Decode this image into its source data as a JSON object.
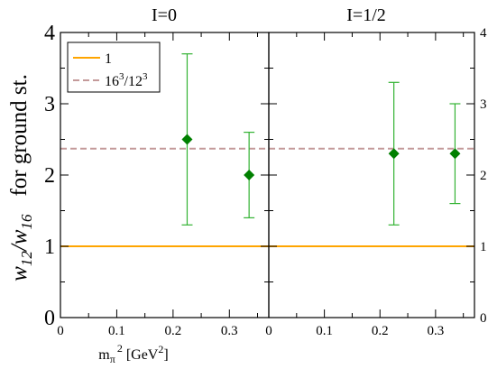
{
  "chart_data": [
    {
      "type": "scatter",
      "title": "I=0",
      "xlabel": "m",
      "xlabel_sub": "π",
      "xlabel_sup": "2",
      "xlabel_unit_prefix": " [GeV",
      "xlabel_unit_sup": "2",
      "xlabel_unit_suffix": "]",
      "ylabel_main": "w",
      "ylabel_sub1": "12",
      "ylabel_mid": "/w",
      "ylabel_sub2": "16",
      "ylabel_tail": "for ground st.",
      "xlim": [
        0,
        0.37
      ],
      "ylim": [
        0,
        4
      ],
      "xticks": [
        0,
        0.1,
        0.2,
        0.3
      ],
      "xtick_labels": [
        "0",
        "0.1",
        "0.2",
        "0.3"
      ],
      "yticks": [
        0,
        1,
        2,
        3,
        4
      ],
      "ytick_labels": [
        "0",
        "1",
        "2",
        "3",
        "4"
      ],
      "ytick_side": "left",
      "grid": false,
      "legend_placement": "top-left",
      "points": [
        {
          "x": 0.225,
          "y": 2.5,
          "ylow": 1.3,
          "yhigh": 3.7
        },
        {
          "x": 0.335,
          "y": 2.0,
          "ylow": 1.4,
          "yhigh": 2.6
        }
      ],
      "reference_lines": [
        {
          "name": "1",
          "y": 1.0,
          "color": "#ffa500",
          "style": "solid"
        },
        {
          "name": "16³/12³",
          "y": 2.37,
          "color": "#c49a9a",
          "style": "dashed"
        }
      ]
    },
    {
      "type": "scatter",
      "title": "I=1/2",
      "xlim": [
        0,
        0.37
      ],
      "ylim": [
        0,
        4
      ],
      "xticks": [
        0,
        0.1,
        0.2,
        0.3
      ],
      "xtick_labels": [
        "0",
        "0.1",
        "0.2",
        "0.3"
      ],
      "yticks": [
        0,
        1,
        2,
        3,
        4
      ],
      "ytick_labels": [
        "0",
        "1",
        "2",
        "3",
        "4"
      ],
      "ytick_side": "right",
      "grid": false,
      "points": [
        {
          "x": 0.225,
          "y": 2.3,
          "ylow": 1.3,
          "yhigh": 3.3
        },
        {
          "x": 0.335,
          "y": 2.3,
          "ylow": 1.6,
          "yhigh": 3.0
        }
      ],
      "reference_lines": [
        {
          "name": "1",
          "y": 1.0,
          "color": "#ffa500",
          "style": "solid"
        },
        {
          "name": "16³/12³",
          "y": 2.37,
          "color": "#c49a9a",
          "style": "dashed"
        }
      ]
    }
  ],
  "legend": {
    "entries": [
      {
        "label": "1",
        "color": "#ffa500",
        "style": "solid"
      },
      {
        "label_base": "16",
        "label_exp1": "3",
        "label_slash": "/12",
        "label_exp2": "3",
        "color": "#c49a9a",
        "style": "dashed"
      }
    ]
  },
  "colors": {
    "marker": "#008000",
    "errorbar": "#33b333",
    "axis": "#000000"
  }
}
